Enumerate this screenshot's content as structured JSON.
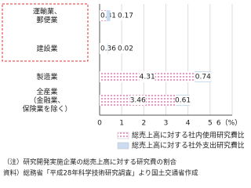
{
  "chart_data": {
    "type": "stacked-bar-horizontal",
    "categories": [
      "運輸業、\n郵便業",
      "建設業",
      "製造業",
      "全産業\n（金融業、\n保険業を除く）"
    ],
    "series": [
      {
        "name": "総売上高に対する社内使用研究費比率",
        "color": "#f08cc0",
        "values": [
          0.31,
          0.36,
          4.31,
          3.46
        ]
      },
      {
        "name": "総売上高に対する社外支出研究費比率",
        "color": "#c9dcf2",
        "values": [
          0.17,
          0.02,
          0.74,
          0.61
        ]
      }
    ],
    "xlim": [
      0,
      6
    ],
    "xticks": [
      0,
      1,
      2,
      3,
      4,
      5,
      {
        "value": 6,
        "label": "6（%）"
      }
    ],
    "grid": true,
    "notes": [
      "（注）研究開発実施企業の総売上高に対する研究費の割合",
      "資料）総務省「平成28年科学技術研究調査」より国土交通省作成"
    ]
  }
}
